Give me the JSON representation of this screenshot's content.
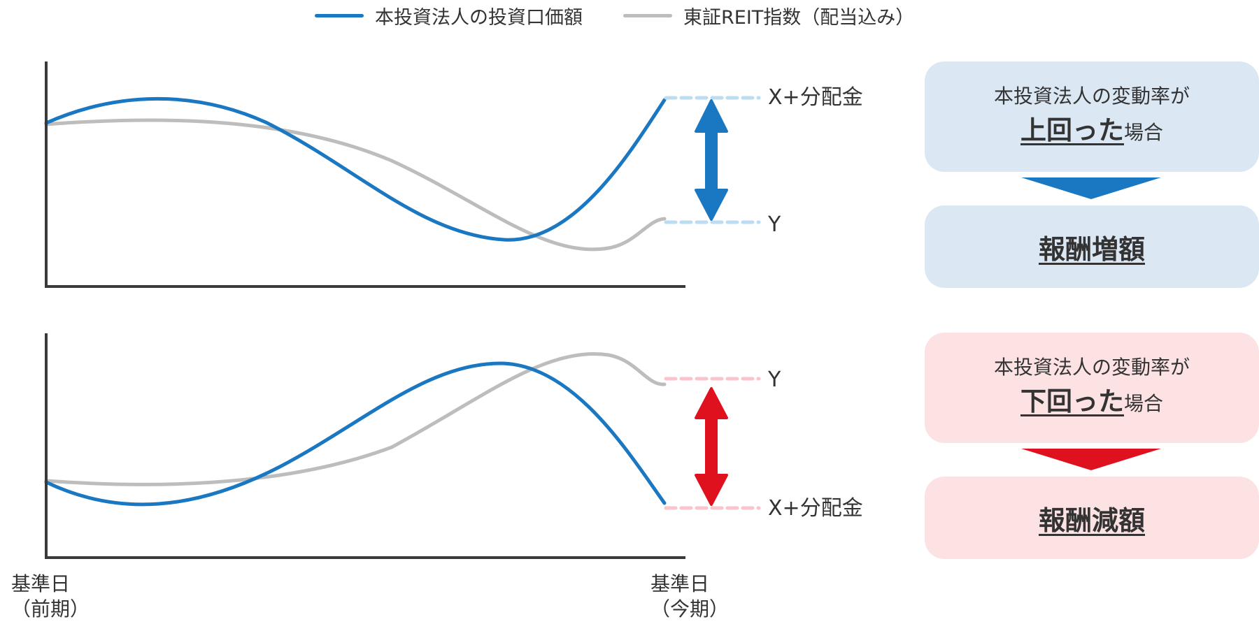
{
  "legend": {
    "items": [
      {
        "label": "本投資法人の投資口価額",
        "color": "#1a77c2"
      },
      {
        "label": "東証REIT指数（配当込み）",
        "color": "#bdbdbd"
      }
    ]
  },
  "charts": {
    "upper": {
      "top_label": "X+分配金",
      "bottom_label": "Y",
      "arrow_color": "#1a77c2",
      "dash_color": "#bcdcf2"
    },
    "lower": {
      "top_label": "Y",
      "bottom_label": "X+分配金",
      "arrow_color": "#e0111f",
      "dash_color": "#f9c4cb"
    }
  },
  "x_axis": {
    "start": {
      "line1": "基準日",
      "line2": "（前期）"
    },
    "end": {
      "line1": "基準日",
      "line2": "（今期）"
    }
  },
  "panels": {
    "upper": {
      "condition": "本投資法人の変動率が",
      "emphasis": "上回った",
      "suffix": "場合",
      "result": "報酬増額",
      "box_color": "#dbe8f4",
      "arrow_color": "#1a77c2"
    },
    "lower": {
      "condition": "本投資法人の変動率が",
      "emphasis": "下回った",
      "suffix": "場合",
      "result": "報酬減額",
      "box_color": "#fde2e4",
      "arrow_color": "#e0111f"
    }
  }
}
